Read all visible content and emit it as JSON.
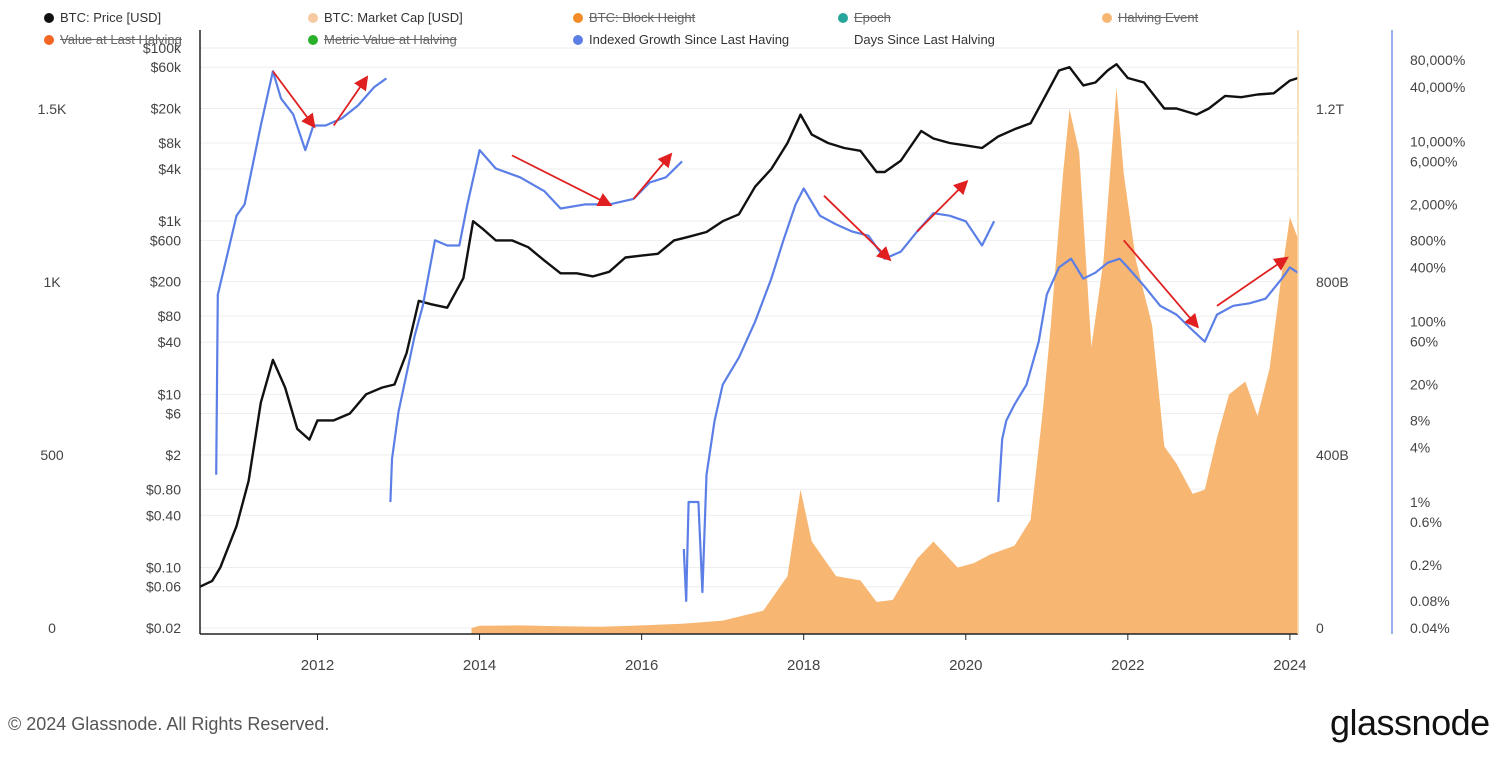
{
  "legend": [
    {
      "label": "BTC: Price [USD]",
      "color": "#111111",
      "struck": false
    },
    {
      "label": "BTC: Market Cap [USD]",
      "color": "#f6c9a0",
      "struck": false
    },
    {
      "label": "BTC: Block Height",
      "color": "#f28c28",
      "struck": true
    },
    {
      "label": "Epoch",
      "color": "#26a69a",
      "struck": true
    },
    {
      "label": "Halving Event",
      "color": "#f7b772",
      "struck": true
    },
    {
      "label": "Value at Last Halving",
      "color": "#f26522",
      "struck": true
    },
    {
      "label": "Metric Value at Halving",
      "color": "#2bb02b",
      "struck": true
    },
    {
      "label": "Indexed Growth Since Last Having",
      "color": "#5b7fe6",
      "struck": false
    },
    {
      "label": "Days Since Last Halving",
      "color": "",
      "struck": false
    }
  ],
  "footer": {
    "copyright": "© 2024 Glassnode. All Rights Reserved.",
    "logo": "glassnode"
  },
  "chart_data": {
    "type": "line",
    "title": "",
    "x_tick_labels": [
      "2012",
      "2014",
      "2016",
      "2018",
      "2020",
      "2022",
      "2024"
    ],
    "x_ticks": [
      2012,
      2014,
      2016,
      2018,
      2020,
      2022,
      2024
    ],
    "xlim": [
      2010.55,
      2024.1
    ],
    "axes": {
      "days_since_halving": {
        "labels": [
          "1.5K",
          "1K",
          "500",
          "0"
        ],
        "values": [
          1500,
          1000,
          500,
          0
        ]
      },
      "price_usd": {
        "labels": [
          "$100k",
          "$60k",
          "$20k",
          "$8k",
          "$4k",
          "$1k",
          "$600",
          "$200",
          "$80",
          "$40",
          "$10",
          "$6",
          "$2",
          "$0.80",
          "$0.40",
          "$0.10",
          "$0.06",
          "$0.02"
        ],
        "values": [
          100000,
          60000,
          20000,
          8000,
          4000,
          1000,
          600,
          200,
          80,
          40,
          10,
          6,
          2,
          0.8,
          0.4,
          0.1,
          0.06,
          0.02
        ],
        "scale": "log"
      },
      "market_cap_usd": {
        "labels": [
          "1.2T",
          "800B",
          "400B",
          "0"
        ],
        "values": [
          1200000000000,
          800000000000,
          400000000000,
          0
        ],
        "ylim": [
          0,
          1400000000000
        ]
      },
      "indexed_growth": {
        "labels": [
          "80,000%",
          "40,000%",
          "10,000%",
          "6,000%",
          "2,000%",
          "800%",
          "400%",
          "100%",
          "60%",
          "20%",
          "8%",
          "4%",
          "1%",
          "0.6%",
          "0.2%",
          "0.08%",
          "0.04%"
        ],
        "values": [
          80000,
          40000,
          10000,
          6000,
          2000,
          800,
          400,
          100,
          60,
          20,
          8,
          4,
          1,
          0.6,
          0.2,
          0.08,
          0.04
        ],
        "scale": "log"
      }
    },
    "series": [
      {
        "name": "BTC: Price [USD]",
        "axis": "price_usd",
        "color": "#111111",
        "x": [
          2010.55,
          2010.7,
          2010.8,
          2011.0,
          2011.15,
          2011.3,
          2011.45,
          2011.6,
          2011.75,
          2011.9,
          2012.0,
          2012.2,
          2012.4,
          2012.6,
          2012.8,
          2012.95,
          2013.1,
          2013.25,
          2013.4,
          2013.6,
          2013.8,
          2013.92,
          2014.05,
          2014.2,
          2014.4,
          2014.6,
          2014.8,
          2015.0,
          2015.2,
          2015.4,
          2015.6,
          2015.8,
          2016.0,
          2016.2,
          2016.4,
          2016.55,
          2016.8,
          2017.0,
          2017.2,
          2017.4,
          2017.6,
          2017.8,
          2017.96,
          2018.1,
          2018.3,
          2018.5,
          2018.7,
          2018.9,
          2019.0,
          2019.2,
          2019.45,
          2019.6,
          2019.8,
          2020.0,
          2020.2,
          2020.4,
          2020.6,
          2020.8,
          2021.0,
          2021.15,
          2021.28,
          2021.45,
          2021.6,
          2021.75,
          2021.86,
          2022.0,
          2022.2,
          2022.45,
          2022.6,
          2022.85,
          2023.0,
          2023.2,
          2023.4,
          2023.6,
          2023.8,
          2024.0,
          2024.1
        ],
        "values": [
          0.06,
          0.07,
          0.1,
          0.3,
          1,
          8,
          25,
          12,
          4,
          3,
          5,
          5,
          6,
          10,
          12,
          13,
          30,
          120,
          110,
          100,
          220,
          1000,
          800,
          600,
          600,
          500,
          350,
          250,
          250,
          230,
          260,
          380,
          400,
          420,
          600,
          650,
          750,
          1000,
          1200,
          2500,
          4000,
          8000,
          17000,
          10000,
          8000,
          7000,
          6500,
          3700,
          3700,
          5000,
          11000,
          9000,
          8000,
          7500,
          7000,
          9500,
          11500,
          13500,
          30000,
          55000,
          60000,
          37000,
          40000,
          55000,
          65000,
          45000,
          40000,
          20000,
          20000,
          17000,
          20000,
          28000,
          27000,
          29000,
          30000,
          42000,
          45000
        ]
      },
      {
        "name": "Indexed Growth Since Last Having",
        "axis": "indexed_growth",
        "color": "#5b7fe6",
        "segments": [
          {
            "x": [
              2010.75,
              2010.77,
              2010.85,
              2011.0,
              2011.1,
              2011.3,
              2011.45,
              2011.55,
              2011.7,
              2011.85,
              2011.95,
              2012.1,
              2012.3,
              2012.5,
              2012.7,
              2012.85
            ],
            "values": [
              2,
              200,
              400,
              1500,
              2000,
              15000,
              60000,
              30000,
              20000,
              8000,
              15000,
              15000,
              18000,
              25000,
              40000,
              50000
            ]
          },
          {
            "x": [
              2012.9,
              2012.92,
              2013.0,
              2013.2,
              2013.3,
              2013.45,
              2013.6,
              2013.75,
              2013.85,
              2014.0,
              2014.2,
              2014.5,
              2014.8,
              2015.0,
              2015.3,
              2015.6,
              2015.9,
              2016.1,
              2016.3,
              2016.5
            ],
            "values": [
              1,
              3,
              10,
              70,
              150,
              800,
              700,
              700,
              2000,
              8000,
              5000,
              4000,
              2800,
              1800,
              2000,
              2000,
              2300,
              3500,
              4000,
              6000
            ]
          },
          {
            "x": [
              2016.52,
              2016.55,
              2016.58,
              2016.7,
              2016.75,
              2016.8,
              2016.9,
              2017.0,
              2017.2,
              2017.4,
              2017.6,
              2017.75,
              2017.9,
              2018.0,
              2018.2,
              2018.4,
              2018.6,
              2018.8,
              2019.0,
              2019.2,
              2019.4,
              2019.6,
              2019.8,
              2020.0,
              2020.2,
              2020.35
            ],
            "values": [
              0.3,
              0.08,
              1,
              1,
              0.1,
              2,
              8,
              20,
              40,
              100,
              300,
              800,
              2000,
              3000,
              1500,
              1200,
              1000,
              900,
              500,
              600,
              1000,
              1600,
              1500,
              1300,
              700,
              1300
            ]
          },
          {
            "x": [
              2020.4,
              2020.45,
              2020.5,
              2020.6,
              2020.75,
              2020.9,
              2021.0,
              2021.15,
              2021.3,
              2021.45,
              2021.6,
              2021.75,
              2021.9,
              2022.0,
              2022.2,
              2022.4,
              2022.6,
              2022.8,
              2022.95,
              2023.1,
              2023.3,
              2023.5,
              2023.7,
              2023.9,
              2024.0,
              2024.1
            ],
            "values": [
              1,
              5,
              8,
              12,
              20,
              60,
              200,
              400,
              500,
              300,
              350,
              450,
              500,
              400,
              250,
              150,
              120,
              80,
              60,
              120,
              150,
              160,
              180,
              300,
              400,
              350
            ]
          }
        ]
      },
      {
        "name": "BTC: Market Cap [USD]",
        "axis": "market_cap_usd",
        "color": "#f7b772",
        "type": "area",
        "x": [
          2013.9,
          2014.0,
          2014.5,
          2015.0,
          2015.5,
          2016.0,
          2016.5,
          2017.0,
          2017.5,
          2017.8,
          2017.96,
          2018.1,
          2018.4,
          2018.7,
          2018.9,
          2019.1,
          2019.4,
          2019.6,
          2019.9,
          2020.1,
          2020.3,
          2020.6,
          2020.8,
          2020.95,
          2021.05,
          2021.2,
          2021.28,
          2021.4,
          2021.55,
          2021.7,
          2021.86,
          2021.95,
          2022.1,
          2022.3,
          2022.45,
          2022.6,
          2022.8,
          2022.95,
          2023.1,
          2023.25,
          2023.45,
          2023.6,
          2023.75,
          2023.9,
          2024.0,
          2024.1
        ],
        "values": [
          0,
          5000000000,
          6000000000,
          4000000000,
          3000000000,
          6000000000,
          10000000000,
          17000000000,
          40000000000,
          120000000000,
          320000000000,
          200000000000,
          120000000000,
          110000000000,
          60000000000,
          65000000000,
          160000000000,
          200000000000,
          140000000000,
          150000000000,
          170000000000,
          190000000000,
          250000000000,
          500000000000,
          700000000000,
          1050000000000,
          1200000000000,
          1100000000000,
          650000000000,
          850000000000,
          1250000000000,
          1050000000000,
          850000000000,
          700000000000,
          420000000000,
          380000000000,
          310000000000,
          320000000000,
          440000000000,
          540000000000,
          570000000000,
          490000000000,
          600000000000,
          820000000000,
          950000000000,
          900000000000
        ]
      }
    ],
    "annotations": [
      {
        "type": "arrow",
        "color": "#e02020",
        "from": [
          2011.45,
          60000
        ],
        "to": [
          2011.95,
          15000
        ],
        "axis": "indexed_growth"
      },
      {
        "type": "arrow",
        "color": "#e02020",
        "from": [
          2012.2,
          15000
        ],
        "to": [
          2012.6,
          50000
        ],
        "axis": "indexed_growth"
      },
      {
        "type": "arrow",
        "color": "#e02020",
        "from": [
          2014.4,
          7000
        ],
        "to": [
          2015.6,
          2000
        ],
        "axis": "indexed_growth"
      },
      {
        "type": "arrow",
        "color": "#e02020",
        "from": [
          2015.9,
          2300
        ],
        "to": [
          2016.35,
          7000
        ],
        "axis": "indexed_growth"
      },
      {
        "type": "arrow",
        "color": "#e02020",
        "from": [
          2018.25,
          2500
        ],
        "to": [
          2019.05,
          500
        ],
        "axis": "indexed_growth"
      },
      {
        "type": "arrow",
        "color": "#e02020",
        "from": [
          2019.4,
          1000
        ],
        "to": [
          2020.0,
          3500
        ],
        "axis": "indexed_growth"
      },
      {
        "type": "arrow",
        "color": "#e02020",
        "from": [
          2021.95,
          800
        ],
        "to": [
          2022.85,
          90
        ],
        "axis": "indexed_growth"
      },
      {
        "type": "arrow",
        "color": "#e02020",
        "from": [
          2023.1,
          150
        ],
        "to": [
          2023.95,
          500
        ],
        "axis": "indexed_growth"
      }
    ],
    "legend_position": "top"
  }
}
